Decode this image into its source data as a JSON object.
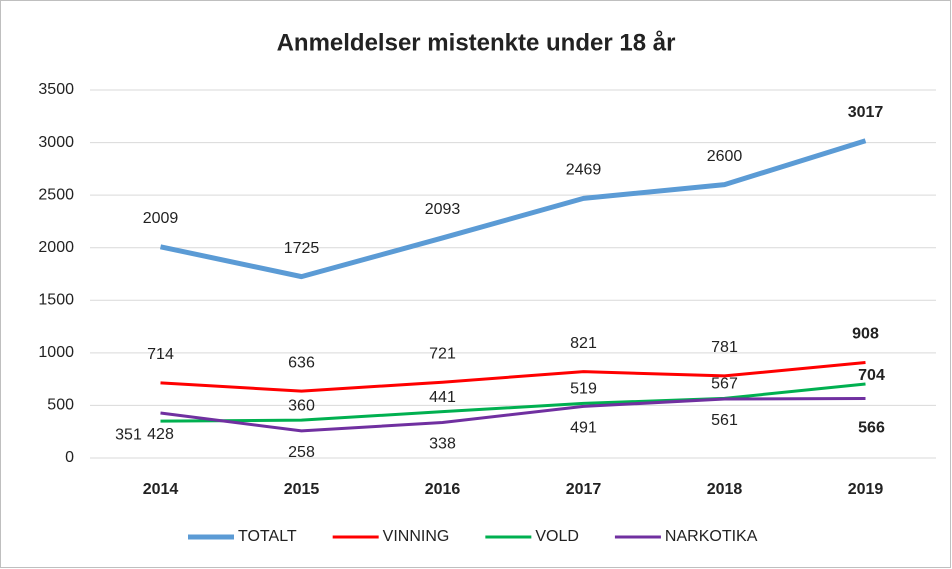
{
  "chart_data": {
    "type": "line",
    "title": "Anmeldelser mistenkte under 18 år",
    "categories": [
      "2014",
      "2015",
      "2016",
      "2017",
      "2018",
      "2019"
    ],
    "series": [
      {
        "name": "TOTALT",
        "color": "#5b9bd5",
        "values": [
          2009,
          1725,
          2093,
          2469,
          2600,
          3017
        ]
      },
      {
        "name": "VINNING",
        "color": "#ff0000",
        "values": [
          714,
          636,
          721,
          821,
          781,
          908
        ]
      },
      {
        "name": "VOLD",
        "color": "#00b050",
        "values": [
          351,
          360,
          441,
          519,
          567,
          704
        ]
      },
      {
        "name": "NARKOTIKA",
        "color": "#7030a0",
        "values": [
          428,
          258,
          338,
          491,
          561,
          566
        ]
      }
    ],
    "ylim": [
      0,
      3500
    ],
    "yticks": [
      0,
      500,
      1000,
      1500,
      2000,
      2500,
      3000,
      3500
    ],
    "grid": true,
    "legend": "bottom"
  }
}
